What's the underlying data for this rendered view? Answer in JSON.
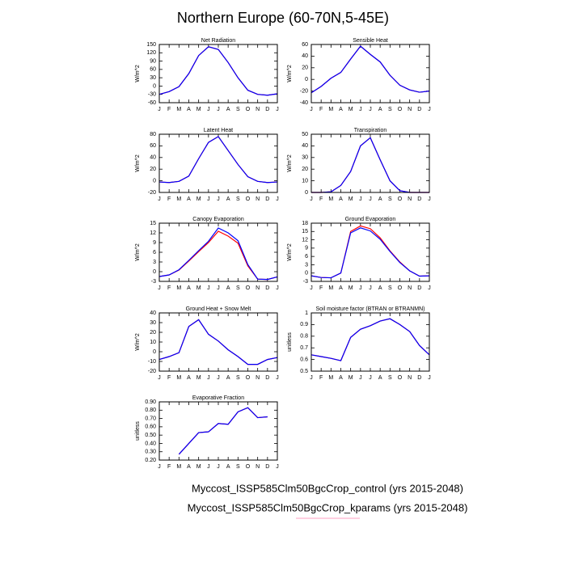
{
  "title": "Northern Europe (60-70N,5-45E)",
  "chart_data": [
    {
      "type": "line",
      "title": "Net Radiation",
      "ylabel": "W/m^2",
      "categories": [
        "J",
        "F",
        "M",
        "A",
        "M",
        "J",
        "J",
        "A",
        "S",
        "O",
        "N",
        "D",
        "J"
      ],
      "series": [
        {
          "name": "Myccost_ISSP585Clm50BgcCrop_control (yrs 2015-2048)",
          "color": "#ff0000",
          "values": [
            -30,
            -20,
            -2,
            45,
            110,
            142,
            132,
            85,
            30,
            -15,
            -30,
            -33,
            -28
          ]
        },
        {
          "name": "Myccost_ISSP585Clm50BgcCrop_kparams (yrs 2015-2048)",
          "color": "#0000ff",
          "values": [
            -30,
            -20,
            -2,
            45,
            110,
            142,
            132,
            85,
            30,
            -15,
            -30,
            -33,
            -28
          ]
        }
      ],
      "ylim": [
        -60,
        150
      ],
      "yticks": [
        -60,
        -30,
        0,
        30,
        60,
        90,
        120,
        150
      ]
    },
    {
      "type": "line",
      "title": "Sensible Heat",
      "ylabel": "W/m^2",
      "categories": [
        "J",
        "F",
        "M",
        "A",
        "M",
        "J",
        "J",
        "A",
        "S",
        "O",
        "N",
        "D",
        "J"
      ],
      "series": [
        {
          "name": "Myccost_ISSP585Clm50BgcCrop_control (yrs 2015-2048)",
          "color": "#ff0000",
          "values": [
            -23,
            -12,
            2,
            12,
            35,
            57,
            43,
            30,
            7,
            -10,
            -18,
            -22,
            -20
          ]
        },
        {
          "name": "Myccost_ISSP585Clm50BgcCrop_kparams (yrs 2015-2048)",
          "color": "#0000ff",
          "values": [
            -23,
            -12,
            2,
            12,
            35,
            57,
            43,
            30,
            7,
            -10,
            -18,
            -22,
            -20
          ]
        }
      ],
      "ylim": [
        -40,
        60
      ],
      "yticks": [
        -40,
        -20,
        0,
        20,
        40,
        60
      ]
    },
    {
      "type": "line",
      "title": "Latent Heat",
      "ylabel": "W/m^2",
      "categories": [
        "J",
        "F",
        "M",
        "A",
        "M",
        "J",
        "J",
        "A",
        "S",
        "O",
        "N",
        "D",
        "J"
      ],
      "series": [
        {
          "name": "Myccost_ISSP585Clm50BgcCrop_control (yrs 2015-2048)",
          "color": "#ff0000",
          "values": [
            -2,
            -3,
            -1,
            8,
            38,
            66,
            76,
            52,
            28,
            7,
            -1,
            -3,
            -2
          ]
        },
        {
          "name": "Myccost_ISSP585Clm50BgcCrop_kparams (yrs 2015-2048)",
          "color": "#0000ff",
          "values": [
            -2,
            -3,
            -1,
            8,
            38,
            66,
            76,
            52,
            28,
            7,
            -1,
            -3,
            -2
          ]
        }
      ],
      "ylim": [
        -20,
        80
      ],
      "yticks": [
        -20,
        0,
        20,
        40,
        60,
        80
      ]
    },
    {
      "type": "line",
      "title": "Transpiration",
      "ylabel": "W/m^2",
      "categories": [
        "J",
        "F",
        "M",
        "A",
        "M",
        "J",
        "J",
        "A",
        "S",
        "O",
        "N",
        "D",
        "J"
      ],
      "series": [
        {
          "name": "Myccost_ISSP585Clm50BgcCrop_control (yrs 2015-2048)",
          "color": "#ff0000",
          "values": [
            0,
            0,
            0.5,
            6,
            18,
            40,
            47,
            28,
            10,
            1.5,
            0,
            0,
            0
          ]
        },
        {
          "name": "Myccost_ISSP585Clm50BgcCrop_kparams (yrs 2015-2048)",
          "color": "#0000ff",
          "values": [
            0,
            0,
            0.5,
            6,
            18,
            40,
            47,
            28,
            10,
            1.5,
            0,
            0,
            0
          ]
        }
      ],
      "ylim": [
        0,
        50
      ],
      "yticks": [
        0,
        10,
        20,
        30,
        40,
        50
      ]
    },
    {
      "type": "line",
      "title": "Canopy Evaporation",
      "ylabel": "W/m^2",
      "categories": [
        "J",
        "F",
        "M",
        "A",
        "M",
        "J",
        "J",
        "A",
        "S",
        "O",
        "N",
        "D",
        "J"
      ],
      "series": [
        {
          "name": "Myccost_ISSP585Clm50BgcCrop_control (yrs 2015-2048)",
          "color": "#ff0000",
          "values": [
            -1.5,
            -1,
            0.5,
            3.3,
            6.2,
            9,
            12.5,
            11,
            8.8,
            1.8,
            -2.3,
            -2.4,
            -1.6
          ]
        },
        {
          "name": "Myccost_ISSP585Clm50BgcCrop_kparams (yrs 2015-2048)",
          "color": "#0000ff",
          "values": [
            -1.5,
            -1,
            0.6,
            3.5,
            6.5,
            9.4,
            13.5,
            12,
            9.6,
            2.2,
            -2.3,
            -2.4,
            -1.6
          ]
        }
      ],
      "ylim": [
        -3,
        15
      ],
      "yticks": [
        -3,
        0,
        3,
        6,
        9,
        12,
        15
      ]
    },
    {
      "type": "line",
      "title": "Ground Evaporation",
      "ylabel": "W/m^2",
      "categories": [
        "J",
        "F",
        "M",
        "A",
        "M",
        "J",
        "J",
        "A",
        "S",
        "O",
        "N",
        "D",
        "J"
      ],
      "series": [
        {
          "name": "Myccost_ISSP585Clm50BgcCrop_control (yrs 2015-2048)",
          "color": "#ff0000",
          "values": [
            -1,
            -1.6,
            -1.7,
            0,
            15,
            17,
            16,
            12.7,
            8,
            4,
            0.8,
            -1.1,
            -1
          ]
        },
        {
          "name": "Myccost_ISSP585Clm50BgcCrop_kparams (yrs 2015-2048)",
          "color": "#0000ff",
          "values": [
            -1,
            -1.6,
            -1.7,
            0,
            14.5,
            16.3,
            15.2,
            12.2,
            7.8,
            3.8,
            0.8,
            -1.1,
            -1
          ]
        }
      ],
      "ylim": [
        -3,
        18
      ],
      "yticks": [
        -3,
        0,
        3,
        6,
        9,
        12,
        15,
        18
      ]
    },
    {
      "type": "line",
      "title": "Ground Heat + Snow Melt",
      "ylabel": "W/m^2",
      "categories": [
        "J",
        "F",
        "M",
        "A",
        "M",
        "J",
        "J",
        "A",
        "S",
        "O",
        "N",
        "D",
        "J"
      ],
      "series": [
        {
          "name": "Myccost_ISSP585Clm50BgcCrop_control (yrs 2015-2048)",
          "color": "#ff0000",
          "values": [
            -8,
            -5,
            -1,
            26,
            33,
            18,
            11,
            2,
            -5,
            -13,
            -13,
            -8,
            -6
          ]
        },
        {
          "name": "Myccost_ISSP585Clm50BgcCrop_kparams (yrs 2015-2048)",
          "color": "#0000ff",
          "values": [
            -8,
            -5,
            -1,
            26,
            33,
            18,
            11,
            2,
            -5,
            -13,
            -13,
            -8,
            -6
          ]
        }
      ],
      "ylim": [
        -20,
        40
      ],
      "yticks": [
        -20,
        -10,
        0,
        10,
        20,
        30,
        40
      ]
    },
    {
      "type": "line",
      "title": "Soil moisture factor (BTRAN or BTRANMN)",
      "ylabel": "unitless",
      "categories": [
        "J",
        "F",
        "M",
        "A",
        "M",
        "J",
        "J",
        "A",
        "S",
        "O",
        "N",
        "D",
        "J"
      ],
      "series": [
        {
          "name": "Myccost_ISSP585Clm50BgcCrop_control (yrs 2015-2048)",
          "color": "#ff0000",
          "values": [
            0.64,
            0.625,
            0.61,
            0.59,
            0.79,
            0.86,
            0.89,
            0.93,
            0.95,
            0.9,
            0.84,
            0.72,
            0.64
          ]
        },
        {
          "name": "Myccost_ISSP585Clm50BgcCrop_kparams (yrs 2015-2048)",
          "color": "#0000ff",
          "values": [
            0.64,
            0.625,
            0.61,
            0.59,
            0.79,
            0.86,
            0.89,
            0.93,
            0.95,
            0.9,
            0.84,
            0.72,
            0.64
          ]
        }
      ],
      "ylim": [
        0.5,
        1
      ],
      "yticks": [
        0.5,
        0.6,
        0.7,
        0.8,
        0.9,
        1
      ]
    },
    {
      "type": "line",
      "title": "Evaporative Fraction",
      "ylabel": "unitless",
      "categories": [
        "J",
        "F",
        "M",
        "A",
        "M",
        "J",
        "J",
        "A",
        "S",
        "O",
        "N",
        "D",
        "J"
      ],
      "series": [
        {
          "name": "Myccost_ISSP585Clm50BgcCrop_control (yrs 2015-2048)",
          "color": "#ff0000",
          "values": [
            null,
            null,
            0.27,
            0.4,
            0.53,
            0.54,
            0.64,
            0.63,
            0.78,
            0.83,
            0.71,
            0.72,
            null
          ]
        },
        {
          "name": "Myccost_ISSP585Clm50BgcCrop_kparams (yrs 2015-2048)",
          "color": "#0000ff",
          "values": [
            null,
            null,
            0.27,
            0.4,
            0.53,
            0.54,
            0.64,
            0.63,
            0.78,
            0.83,
            0.71,
            0.72,
            null
          ]
        }
      ],
      "ylim": [
        0.2,
        0.9
      ],
      "yticks": [
        {
          "value": 0.2,
          "label": "0.20"
        },
        {
          "value": 0.3,
          "label": "0.30"
        },
        {
          "value": 0.4,
          "label": "0.40"
        },
        {
          "value": 0.5,
          "label": "0.50"
        },
        {
          "value": 0.6,
          "label": "0.60"
        },
        {
          "value": 0.7,
          "label": "0.70"
        },
        {
          "value": 0.8,
          "label": "0.80"
        },
        {
          "value": 0.9,
          "label": "0.90"
        }
      ]
    }
  ]
}
